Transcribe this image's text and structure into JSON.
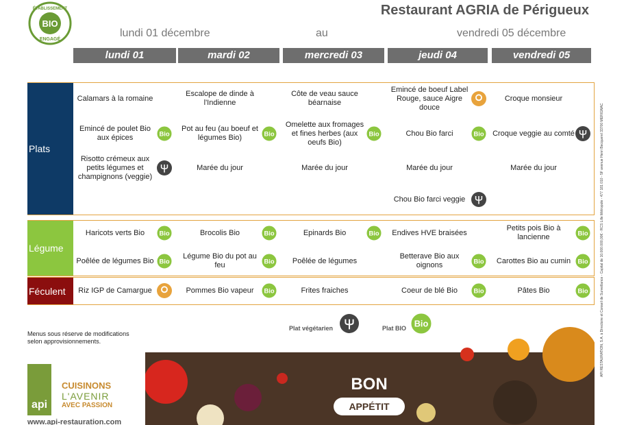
{
  "header": {
    "title": "Restaurant AGRIA de Périgueux",
    "date_from": "lundi 01 décembre",
    "to": "au",
    "date_to": "vendredi 05 décembre"
  },
  "logo": {
    "top": "ÉTABLISSEMENT",
    "center": "BIO",
    "bottom": "ENGAGÉ"
  },
  "days": [
    "lundi 01",
    "mardi 02",
    "mercredi 03",
    "jeudi 04",
    "vendredi 05"
  ],
  "icons": {
    "bio": "Bio"
  },
  "sections": [
    {
      "name": "Plats",
      "rows": [
        [
          {
            "text": "Calamars à la romaine",
            "icon": null
          },
          {
            "text": "Escalope de dinde à l'Indienne",
            "icon": null
          },
          {
            "text": "Côte de veau sauce béarnaise",
            "icon": null
          },
          {
            "text": "Emincé de boeuf Label Rouge, sauce Aigre douce",
            "icon": "label"
          },
          {
            "text": "Croque monsieur",
            "icon": null
          }
        ],
        [
          {
            "text": "Emincé de poulet Bio aux épices",
            "icon": "bio"
          },
          {
            "text": "Pot au feu (au boeuf et légumes Bio)",
            "icon": "bio"
          },
          {
            "text": "Omelette aux fromages et fines herbes (aux oeufs Bio)",
            "icon": "bio"
          },
          {
            "text": "Chou Bio farci",
            "icon": "bio"
          },
          {
            "text": "Croque veggie au comté",
            "icon": "veggie"
          }
        ],
        [
          {
            "text": "Risotto crémeux aux petits légumes et champignons (veggie)",
            "icon": "veggie"
          },
          {
            "text": "Marée du jour",
            "icon": null
          },
          {
            "text": "Marée du jour",
            "icon": null
          },
          {
            "text": "Marée du jour",
            "icon": null
          },
          {
            "text": "Marée du jour",
            "icon": null
          }
        ],
        [
          null,
          null,
          null,
          {
            "text": "Chou Bio farci veggie",
            "icon": "veggie"
          },
          null
        ]
      ]
    },
    {
      "name": "Légume",
      "rows": [
        [
          {
            "text": "Haricots verts Bio",
            "icon": "bio"
          },
          {
            "text": "Brocolis Bio",
            "icon": "bio"
          },
          {
            "text": "Epinards Bio",
            "icon": "bio"
          },
          {
            "text": "Endives HVE braisées",
            "icon": null
          },
          {
            "text": "Petits pois Bio à lancienne",
            "icon": "bio"
          }
        ],
        [
          {
            "text": "Poêlée de légumes Bio",
            "icon": "bio"
          },
          {
            "text": "Légume Bio du pot au feu",
            "icon": "bio"
          },
          {
            "text": "Poêlée de légumes",
            "icon": null
          },
          {
            "text": "Betterave Bio aux oignons",
            "icon": "bio"
          },
          {
            "text": "Carottes Bio au cumin",
            "icon": "bio"
          }
        ]
      ]
    },
    {
      "name": "Féculent",
      "rows": [
        [
          {
            "text": "Riz IGP de Camargue",
            "icon": "label"
          },
          {
            "text": "Pommes Bio vapeur",
            "icon": "bio"
          },
          {
            "text": "Frites fraiches",
            "icon": null
          },
          {
            "text": "Coeur de blé Bio",
            "icon": "bio"
          },
          {
            "text": "Pâtes Bio",
            "icon": "bio"
          }
        ]
      ]
    }
  ],
  "note": "Menus sous réserve de modifications selon approvisionnements.",
  "legend": {
    "veggie": "Plat végétarien",
    "bio": "Plat BIO"
  },
  "brand": {
    "logo": "api",
    "line1": "CUISINONS",
    "line2": "L'AVENIR",
    "line3": "AVEC PASSION",
    "url": "www.api-restauration.com"
  },
  "banner": {
    "bon": "BON",
    "appetit": "APPÉTIT"
  },
  "side_text": "API RESTAURATION, S.A. à Directoire et Conseil de Surveillance - Capital de 10.000.000,00€ - RCS Lille Métropole - 477 181 010 - 5F avenue Henri Becquerel 33700 MERIGNAC"
}
